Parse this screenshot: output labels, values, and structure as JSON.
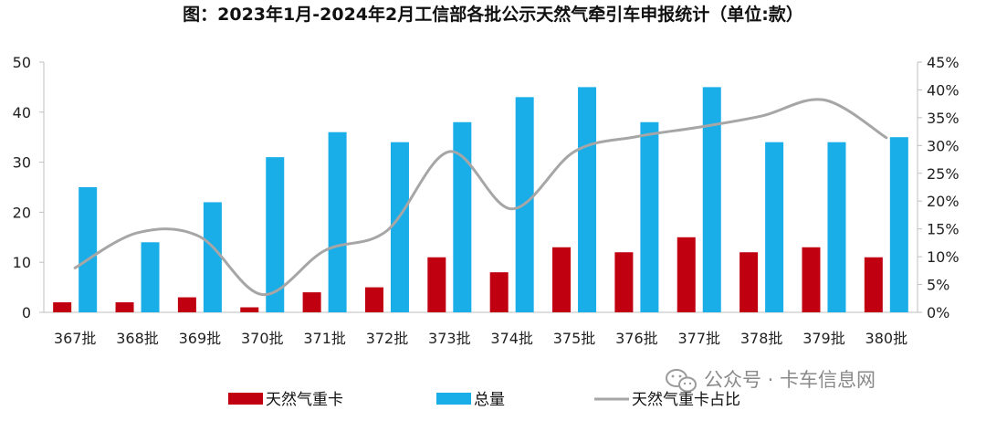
{
  "chart_data": {
    "type": "bar",
    "title": "图：2023年1月-2024年2月工信部各批公示天然气牵引车申报统计（单位:款）",
    "categories": [
      "367批",
      "368批",
      "369批",
      "370批",
      "371批",
      "372批",
      "373批",
      "374批",
      "375批",
      "376批",
      "377批",
      "378批",
      "379批",
      "380批"
    ],
    "series": [
      {
        "name": "天然气重卡",
        "type": "bar",
        "axis": "left",
        "color": "#c00010",
        "values": [
          2,
          2,
          3,
          1,
          4,
          5,
          11,
          8,
          13,
          12,
          15,
          12,
          13,
          11
        ]
      },
      {
        "name": "总量",
        "type": "bar",
        "axis": "left",
        "color": "#1aaee8",
        "values": [
          25,
          14,
          22,
          31,
          36,
          34,
          38,
          43,
          45,
          38,
          45,
          34,
          34,
          35
        ]
      },
      {
        "name": "天然气重卡占比",
        "type": "line",
        "axis": "right",
        "color": "#a6a6a6",
        "values": [
          0.08,
          0.143,
          0.136,
          0.032,
          0.111,
          0.147,
          0.289,
          0.186,
          0.289,
          0.316,
          0.333,
          0.353,
          0.382,
          0.314
        ]
      }
    ],
    "y_left": {
      "min": 0,
      "max": 50,
      "ticks": [
        "0",
        "10",
        "20",
        "30",
        "40",
        "50"
      ]
    },
    "y_right": {
      "min": 0,
      "max": 0.45,
      "ticks": [
        "0%",
        "5%",
        "10%",
        "15%",
        "20%",
        "25%",
        "30%",
        "35%",
        "40%",
        "45%"
      ]
    },
    "grid": false,
    "legend_position": "bottom"
  },
  "watermark": "公众号 · 卡车信息网"
}
